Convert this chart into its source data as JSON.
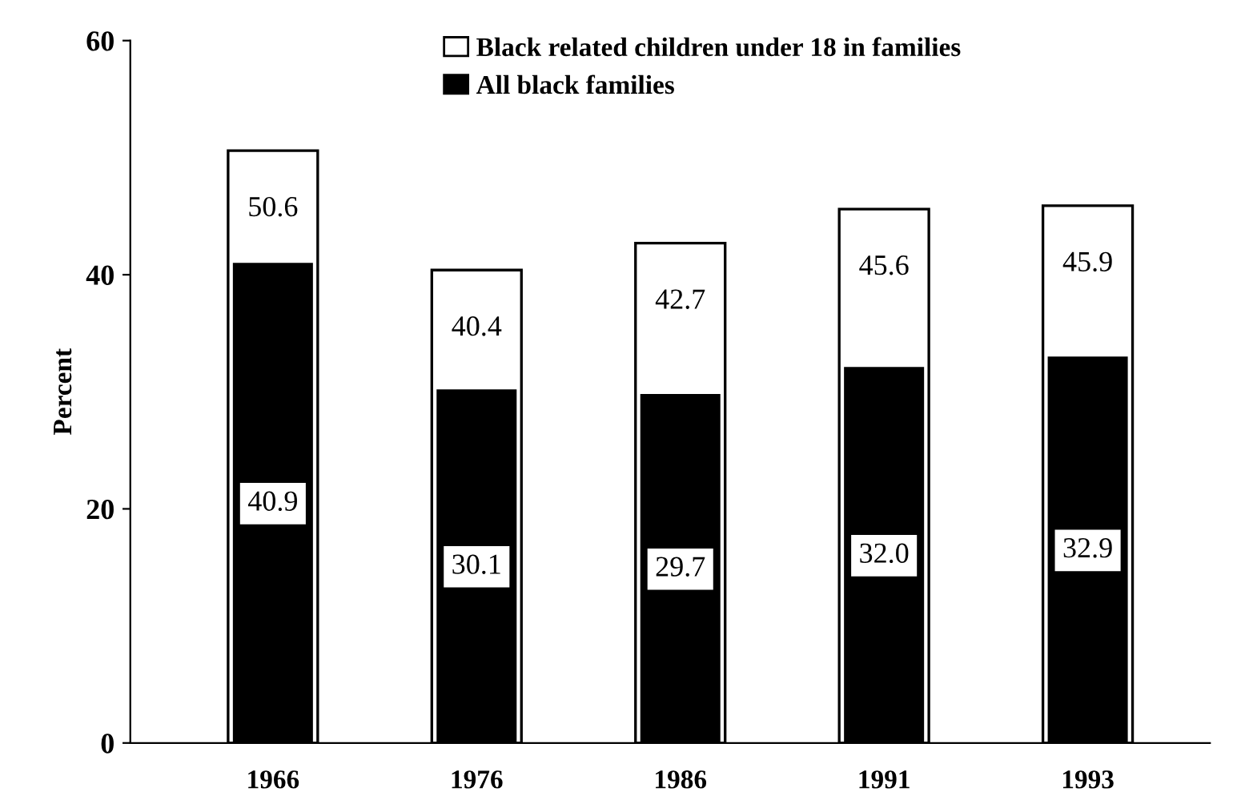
{
  "chart_data": {
    "type": "bar",
    "ylabel": "Percent",
    "categories": [
      "1966",
      "1976",
      "1986",
      "1991",
      "1993"
    ],
    "series": [
      {
        "name": "Black related children under 18 in families",
        "color": "#ffffff",
        "values": [
          50.6,
          40.4,
          42.7,
          45.6,
          45.9
        ],
        "value_labels": [
          "50.6",
          "40.4",
          "42.7",
          "45.6",
          "45.9"
        ]
      },
      {
        "name": "All black families",
        "color": "#000000",
        "values": [
          40.9,
          30.1,
          29.7,
          32.0,
          32.9
        ],
        "value_labels": [
          "40.9",
          "30.1",
          "29.7",
          "32.0",
          "32.9"
        ]
      }
    ],
    "ylim": [
      0,
      60
    ],
    "yticks": [
      0,
      20,
      40,
      60
    ],
    "legend": "top",
    "grid": false
  }
}
